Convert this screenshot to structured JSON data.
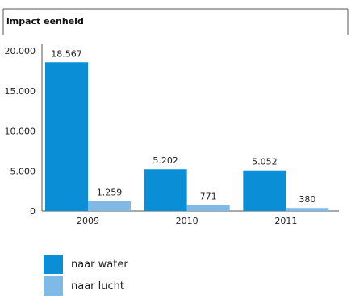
{
  "chart_data": {
    "type": "bar",
    "ylabel": "impact eenheid",
    "categories": [
      "2009",
      "2010",
      "2011"
    ],
    "series": [
      {
        "name": "naar water",
        "values": [
          18567,
          5202,
          5052
        ],
        "labels": [
          "18.567",
          "5.202",
          "5.052"
        ],
        "color": "#0a8fd6"
      },
      {
        "name": "naar lucht",
        "values": [
          1259,
          771,
          380
        ],
        "labels": [
          "1.259",
          "771",
          "380"
        ],
        "color": "#7fb9e6"
      }
    ],
    "ylim": [
      0,
      20000
    ],
    "yticks": [
      0,
      5000,
      10000,
      15000,
      20000
    ],
    "ytick_labels": [
      "0",
      "5.000",
      "10.000",
      "15.000",
      "20.000"
    ],
    "grid": false,
    "legend_position": "bottom-left"
  }
}
